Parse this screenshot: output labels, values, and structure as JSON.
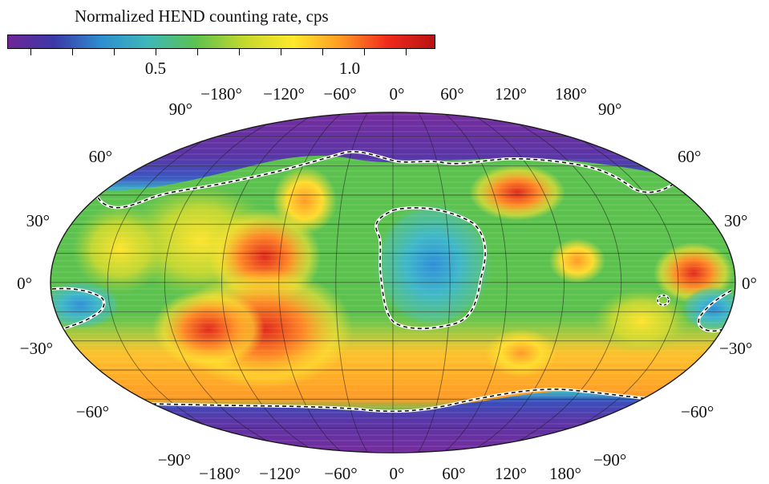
{
  "colorbar": {
    "title": "Normalized HEND counting rate, cps",
    "tick_labels": [
      "0.5",
      "1.0"
    ],
    "colors": [
      "#6f2597",
      "#3a3aa8",
      "#2e8fd0",
      "#3fb8b8",
      "#5cc24f",
      "#c8d92c",
      "#ffe92c",
      "#ff9a24",
      "#f02a1c",
      "#b81212"
    ]
  },
  "map": {
    "top_longitude_labels": [
      "−180°",
      "−120°",
      "−60°",
      "0°",
      "60°",
      "120°",
      "180°"
    ],
    "bottom_longitude_labels": [
      "−180°",
      "−120°",
      "−60°",
      "0°",
      "60°",
      "120°",
      "180°"
    ],
    "latitude_labels_left": [
      "90°",
      "60°",
      "30°",
      "0°",
      "−30°",
      "−60°",
      "−90°"
    ],
    "latitude_labels_right": [
      "90°",
      "60°",
      "30°",
      "0°",
      "−30°",
      "−60°",
      "−90°"
    ],
    "contour_style": "white-black-dashed",
    "colors": {
      "polar": "#7a2b9c",
      "low": "#3dbcc7",
      "mid": "#5cc24f",
      "high": "#ffe62e",
      "higher": "#ff9426",
      "highest": "#f0361c"
    }
  }
}
